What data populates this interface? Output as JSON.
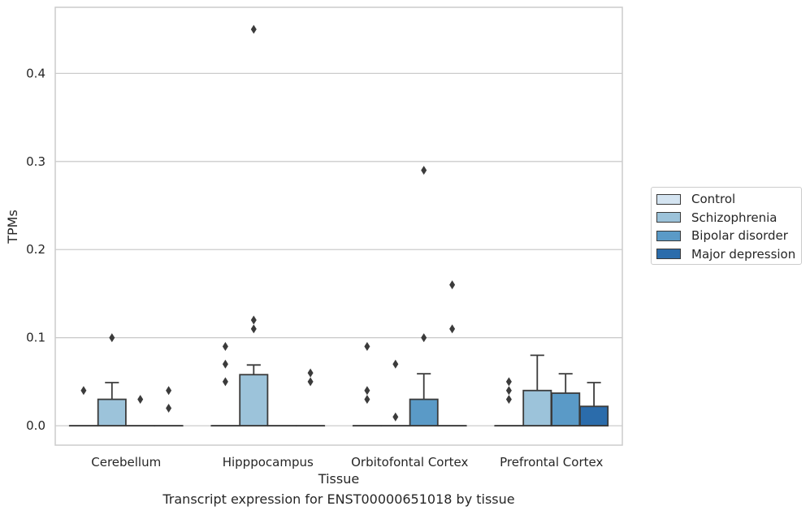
{
  "chart_data": {
    "type": "box",
    "title": "",
    "caption": "Transcript expression for ENST00000651018 by tissue",
    "xlabel": "Tissue",
    "ylabel": "TPMs",
    "ylim": [
      -0.022,
      0.475
    ],
    "yticks": [
      0.0,
      0.1,
      0.2,
      0.3,
      0.4
    ],
    "ytick_labels": [
      "0.0",
      "0.1",
      "0.2",
      "0.3",
      "0.4"
    ],
    "grid": "horizontal",
    "legend_position": "right",
    "categories": [
      "Cerebellum",
      "Hipppocampus",
      "Orbitofontal Cortex",
      "Prefrontal Cortex"
    ],
    "series": [
      {
        "name": "Control",
        "color": "#d4e4f1",
        "boxes": [
          {
            "q1": 0,
            "median": 0,
            "q3": 0,
            "whisker_low": 0,
            "whisker_high": 0,
            "outliers": [
              0.04
            ]
          },
          {
            "q1": 0,
            "median": 0,
            "q3": 0,
            "whisker_low": 0,
            "whisker_high": 0,
            "outliers": [
              0.09,
              0.07,
              0.05
            ]
          },
          {
            "q1": 0,
            "median": 0,
            "q3": 0,
            "whisker_low": 0,
            "whisker_high": 0,
            "outliers": [
              0.09,
              0.04,
              0.03
            ]
          },
          {
            "q1": 0,
            "median": 0,
            "q3": 0,
            "whisker_low": 0,
            "whisker_high": 0,
            "outliers": [
              0.05,
              0.04,
              0.03
            ]
          }
        ]
      },
      {
        "name": "Schizophrenia",
        "color": "#9cc3da",
        "boxes": [
          {
            "q1": 0,
            "median": 0,
            "q3": 0.03,
            "whisker_low": 0,
            "whisker_high": 0.049,
            "outliers": [
              0.1
            ]
          },
          {
            "q1": 0,
            "median": 0,
            "q3": 0.058,
            "whisker_low": 0,
            "whisker_high": 0.069,
            "outliers": [
              0.45,
              0.12,
              0.11
            ]
          },
          {
            "q1": 0,
            "median": 0,
            "q3": 0,
            "whisker_low": 0,
            "whisker_high": 0,
            "outliers": [
              0.07,
              0.01
            ]
          },
          {
            "q1": 0,
            "median": 0,
            "q3": 0.04,
            "whisker_low": 0,
            "whisker_high": 0.08,
            "outliers": []
          }
        ]
      },
      {
        "name": "Bipolar disorder",
        "color": "#5a9ac7",
        "boxes": [
          {
            "q1": 0,
            "median": 0,
            "q3": 0,
            "whisker_low": 0,
            "whisker_high": 0,
            "outliers": [
              0.03
            ]
          },
          {
            "q1": 0,
            "median": 0,
            "q3": 0,
            "whisker_low": 0,
            "whisker_high": 0,
            "outliers": []
          },
          {
            "q1": 0,
            "median": 0,
            "q3": 0.03,
            "whisker_low": 0,
            "whisker_high": 0.059,
            "outliers": [
              0.29,
              0.1
            ]
          },
          {
            "q1": 0,
            "median": 0,
            "q3": 0.037,
            "whisker_low": 0,
            "whisker_high": 0.059,
            "outliers": []
          }
        ]
      },
      {
        "name": "Major depression",
        "color": "#2b6cab",
        "boxes": [
          {
            "q1": 0,
            "median": 0,
            "q3": 0,
            "whisker_low": 0,
            "whisker_high": 0,
            "outliers": [
              0.04,
              0.02
            ]
          },
          {
            "q1": 0,
            "median": 0,
            "q3": 0,
            "whisker_low": 0,
            "whisker_high": 0,
            "outliers": [
              0.06,
              0.05
            ]
          },
          {
            "q1": 0,
            "median": 0,
            "q3": 0,
            "whisker_low": 0,
            "whisker_high": 0,
            "outliers": [
              0.16,
              0.11
            ]
          },
          {
            "q1": 0,
            "median": 0,
            "q3": 0.022,
            "whisker_low": 0,
            "whisker_high": 0.049,
            "outliers": []
          }
        ]
      }
    ]
  }
}
